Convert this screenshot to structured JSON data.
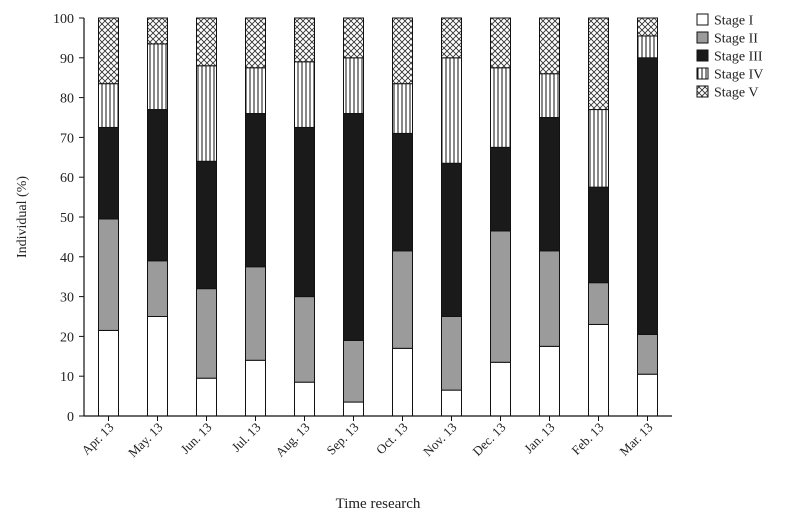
{
  "chart_data": {
    "type": "bar",
    "stacked": true,
    "xlabel": "Time research",
    "ylabel": "Individual (%)",
    "ylim": [
      0,
      100
    ],
    "yticks": [
      0,
      10,
      20,
      30,
      40,
      50,
      60,
      70,
      80,
      90,
      100
    ],
    "categories": [
      "Apr. 13",
      "May. 13",
      "Jun. 13",
      "Jul. 13",
      "Aug. 13",
      "Sep. 13",
      "Oct. 13",
      "Nov. 13",
      "Dec. 13",
      "Jan. 13",
      "Feb. 13",
      "Mar. 13"
    ],
    "legend_position": "top-right",
    "series": [
      {
        "name": "Stage I",
        "pattern": "white",
        "values": [
          21.5,
          25,
          9.5,
          14,
          8.5,
          3.5,
          17,
          6.5,
          13.5,
          17.5,
          23,
          10.5
        ]
      },
      {
        "name": "Stage II",
        "pattern": "gray",
        "values": [
          28,
          14,
          22.5,
          23.5,
          21.5,
          15.5,
          24.5,
          18.5,
          33,
          24,
          10.5,
          10
        ]
      },
      {
        "name": "Stage III",
        "pattern": "black",
        "values": [
          23,
          38,
          32,
          38.5,
          42.5,
          57,
          29.5,
          38.5,
          21,
          33.5,
          24,
          69.5
        ]
      },
      {
        "name": "Stage IV",
        "pattern": "vertical-lines",
        "values": [
          11,
          16.5,
          24,
          11.5,
          16.5,
          14,
          12.5,
          26.5,
          20,
          11,
          19.5,
          5.5
        ]
      },
      {
        "name": "Stage V",
        "pattern": "crosshatch",
        "values": [
          16.5,
          6.5,
          12,
          12.5,
          11,
          10,
          16.5,
          10,
          12.5,
          14,
          23,
          4.5
        ]
      }
    ]
  }
}
